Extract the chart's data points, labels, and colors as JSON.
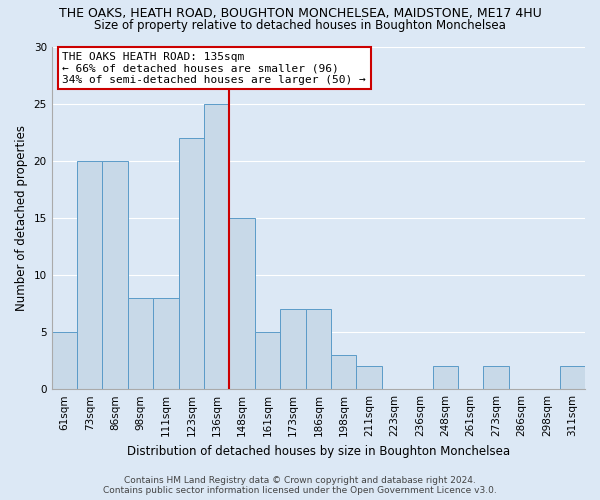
{
  "title": "THE OAKS, HEATH ROAD, BOUGHTON MONCHELSEA, MAIDSTONE, ME17 4HU",
  "subtitle": "Size of property relative to detached houses in Boughton Monchelsea",
  "xlabel": "Distribution of detached houses by size in Boughton Monchelsea",
  "ylabel": "Number of detached properties",
  "footer1": "Contains HM Land Registry data © Crown copyright and database right 2024.",
  "footer2": "Contains public sector information licensed under the Open Government Licence v3.0.",
  "categories": [
    "61sqm",
    "73sqm",
    "86sqm",
    "98sqm",
    "111sqm",
    "123sqm",
    "136sqm",
    "148sqm",
    "161sqm",
    "173sqm",
    "186sqm",
    "198sqm",
    "211sqm",
    "223sqm",
    "236sqm",
    "248sqm",
    "261sqm",
    "273sqm",
    "286sqm",
    "298sqm",
    "311sqm"
  ],
  "values": [
    5,
    20,
    20,
    8,
    8,
    22,
    25,
    15,
    5,
    7,
    7,
    3,
    2,
    0,
    0,
    2,
    0,
    2,
    0,
    0,
    2
  ],
  "bar_color": "#c8d9e8",
  "bar_edge_color": "#5b9bc8",
  "reference_line_x": 6.5,
  "annotation_text": "THE OAKS HEATH ROAD: 135sqm\n← 66% of detached houses are smaller (96)\n34% of semi-detached houses are larger (50) →",
  "annotation_box_facecolor": "#ffffff",
  "annotation_box_edgecolor": "#cc0000",
  "reference_line_color": "#cc0000",
  "ylim": [
    0,
    30
  ],
  "yticks": [
    0,
    5,
    10,
    15,
    20,
    25,
    30
  ],
  "background_color": "#dce8f5",
  "plot_background": "#dce8f5",
  "grid_color": "#ffffff",
  "title_fontsize": 9,
  "subtitle_fontsize": 8.5,
  "xlabel_fontsize": 8.5,
  "ylabel_fontsize": 8.5,
  "tick_fontsize": 7.5,
  "annotation_fontsize": 8,
  "footer_fontsize": 6.5
}
